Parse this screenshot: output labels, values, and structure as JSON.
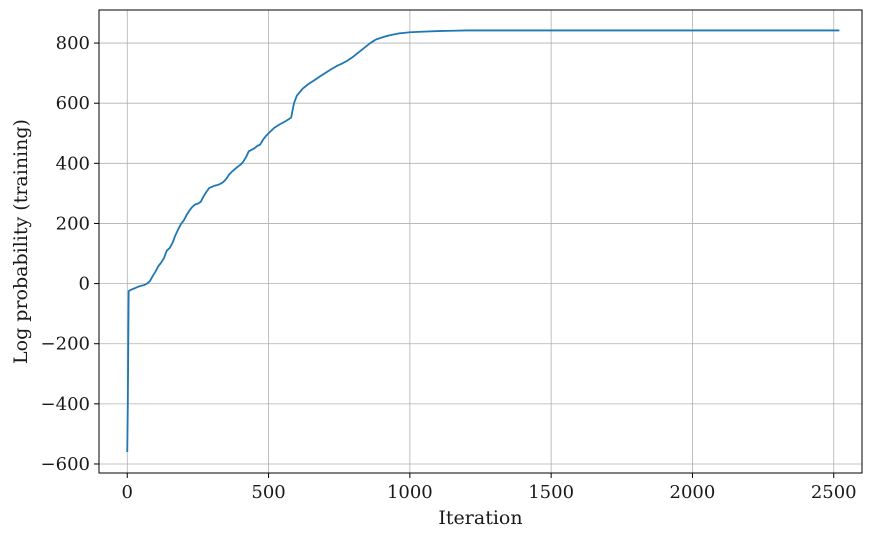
{
  "chart_data": {
    "type": "line",
    "title": "",
    "xlabel": "Iteration",
    "ylabel": "Log probability (training)",
    "xlim": [
      -100,
      2600
    ],
    "ylim": [
      -630,
      910
    ],
    "xticks": [
      0,
      500,
      1000,
      1500,
      2000,
      2500
    ],
    "yticks": [
      -600,
      -400,
      -200,
      0,
      200,
      400,
      600,
      800
    ],
    "xtick_labels": [
      "0",
      "500",
      "1000",
      "1500",
      "2000",
      "2500"
    ],
    "ytick_labels": [
      "−600",
      "−400",
      "−200",
      "0",
      "200",
      "400",
      "600",
      "800"
    ],
    "grid": true,
    "series": [
      {
        "color": "#1f77b4",
        "x": [
          0,
          2,
          5,
          10,
          20,
          30,
          40,
          50,
          60,
          70,
          80,
          90,
          100,
          110,
          120,
          130,
          140,
          150,
          160,
          170,
          180,
          190,
          200,
          210,
          220,
          230,
          240,
          250,
          260,
          270,
          280,
          290,
          300,
          310,
          320,
          330,
          340,
          350,
          360,
          370,
          380,
          390,
          400,
          410,
          420,
          430,
          440,
          450,
          460,
          470,
          480,
          490,
          500,
          520,
          540,
          560,
          580,
          590,
          600,
          620,
          640,
          660,
          680,
          700,
          720,
          740,
          760,
          780,
          800,
          820,
          840,
          860,
          880,
          900,
          920,
          940,
          960,
          980,
          1000,
          1050,
          1100,
          1150,
          1200,
          1300,
          1500,
          2000,
          2520
        ],
        "y": [
          -560,
          -400,
          -25,
          -22,
          -18,
          -14,
          -10,
          -7,
          -5,
          0,
          8,
          25,
          40,
          58,
          70,
          85,
          110,
          118,
          135,
          160,
          180,
          198,
          210,
          228,
          243,
          255,
          263,
          266,
          272,
          290,
          305,
          318,
          322,
          326,
          328,
          332,
          338,
          348,
          362,
          372,
          380,
          388,
          395,
          405,
          420,
          440,
          445,
          450,
          458,
          462,
          478,
          490,
          500,
          518,
          530,
          540,
          552,
          600,
          625,
          648,
          663,
          675,
          688,
          700,
          712,
          723,
          732,
          742,
          755,
          770,
          785,
          800,
          812,
          818,
          824,
          828,
          832,
          834,
          836,
          838,
          840,
          841,
          842,
          842,
          842,
          842,
          842
        ]
      }
    ]
  }
}
